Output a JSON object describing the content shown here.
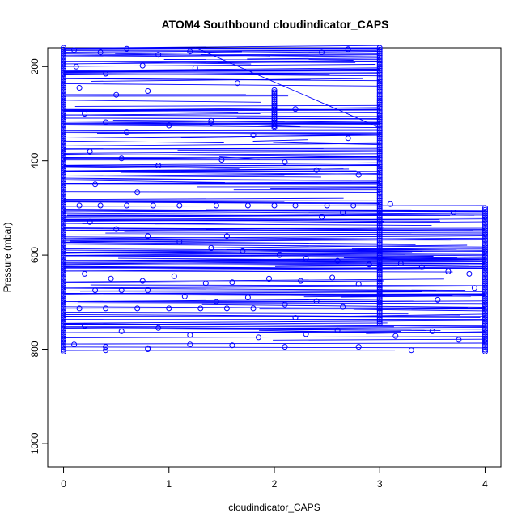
{
  "chart_data": {
    "type": "scatter",
    "title": "ATOM4 Southbound cloudindicator_CAPS",
    "xlabel": "cloudindicator_CAPS",
    "ylabel": "Pressure (mbar)",
    "xlim": [
      -0.15,
      4.15
    ],
    "ylim": [
      1050,
      160
    ],
    "y_inverted": true,
    "x_ticks": [
      0,
      1,
      2,
      3,
      4
    ],
    "x_tick_labels": [
      "0",
      "1",
      "2",
      "3",
      "4"
    ],
    "y_ticks": [
      200,
      400,
      600,
      800,
      1000
    ],
    "y_tick_labels": [
      "200",
      "400",
      "600",
      "800",
      "1000"
    ],
    "series_color": "#0000ff",
    "marker": "open-circle",
    "legend": "none",
    "grid": false,
    "series": [
      {
        "name": "column at cloudindicator 0",
        "x_const": 0,
        "pressure_range": [
          160,
          805
        ],
        "description": "dense observations"
      },
      {
        "name": "column at cloudindicator 3",
        "x_const": 3,
        "pressure_range": [
          160,
          745
        ],
        "description": "dense observations"
      },
      {
        "name": "column at cloudindicator 4",
        "x_const": 4,
        "pressure_range": [
          500,
          805
        ],
        "description": "dense observations"
      },
      {
        "name": "column at cloudindicator 2",
        "x_const": 2,
        "pressure_range": [
          250,
          330
        ],
        "description": "cluster of observations"
      }
    ],
    "scattered_points": [
      {
        "x": 0.1,
        "y": 165
      },
      {
        "x": 0.35,
        "y": 170
      },
      {
        "x": 0.6,
        "y": 162
      },
      {
        "x": 0.9,
        "y": 175
      },
      {
        "x": 1.2,
        "y": 168
      },
      {
        "x": 0.12,
        "y": 200
      },
      {
        "x": 0.4,
        "y": 215
      },
      {
        "x": 0.75,
        "y": 198
      },
      {
        "x": 1.25,
        "y": 203
      },
      {
        "x": 1.65,
        "y": 235
      },
      {
        "x": 0.15,
        "y": 245
      },
      {
        "x": 0.5,
        "y": 260
      },
      {
        "x": 0.8,
        "y": 252
      },
      {
        "x": 2.45,
        "y": 170
      },
      {
        "x": 2.7,
        "y": 163
      },
      {
        "x": 0.2,
        "y": 300
      },
      {
        "x": 0.4,
        "y": 318
      },
      {
        "x": 0.6,
        "y": 340
      },
      {
        "x": 1.0,
        "y": 325
      },
      {
        "x": 1.4,
        "y": 320
      },
      {
        "x": 1.8,
        "y": 345
      },
      {
        "x": 2.2,
        "y": 290
      },
      {
        "x": 2.7,
        "y": 352
      },
      {
        "x": 0.25,
        "y": 380
      },
      {
        "x": 0.55,
        "y": 395
      },
      {
        "x": 0.9,
        "y": 410
      },
      {
        "x": 1.5,
        "y": 398
      },
      {
        "x": 2.1,
        "y": 403
      },
      {
        "x": 2.4,
        "y": 420
      },
      {
        "x": 2.8,
        "y": 430
      },
      {
        "x": 0.3,
        "y": 450
      },
      {
        "x": 0.7,
        "y": 467
      },
      {
        "x": 0.15,
        "y": 495
      },
      {
        "x": 0.35,
        "y": 495
      },
      {
        "x": 0.6,
        "y": 495
      },
      {
        "x": 0.85,
        "y": 495
      },
      {
        "x": 1.1,
        "y": 495
      },
      {
        "x": 1.45,
        "y": 495
      },
      {
        "x": 1.75,
        "y": 495
      },
      {
        "x": 2.0,
        "y": 495
      },
      {
        "x": 2.2,
        "y": 495
      },
      {
        "x": 2.5,
        "y": 495
      },
      {
        "x": 2.75,
        "y": 495
      },
      {
        "x": 3.1,
        "y": 492
      },
      {
        "x": 3.7,
        "y": 510
      },
      {
        "x": 2.65,
        "y": 510
      },
      {
        "x": 0.25,
        "y": 530
      },
      {
        "x": 0.5,
        "y": 545
      },
      {
        "x": 0.8,
        "y": 560
      },
      {
        "x": 1.1,
        "y": 572
      },
      {
        "x": 1.4,
        "y": 585
      },
      {
        "x": 1.7,
        "y": 592
      },
      {
        "x": 2.05,
        "y": 600
      },
      {
        "x": 2.3,
        "y": 608
      },
      {
        "x": 2.6,
        "y": 612
      },
      {
        "x": 2.9,
        "y": 620
      },
      {
        "x": 3.2,
        "y": 618
      },
      {
        "x": 3.4,
        "y": 626
      },
      {
        "x": 3.65,
        "y": 635
      },
      {
        "x": 3.85,
        "y": 640
      },
      {
        "x": 0.2,
        "y": 640
      },
      {
        "x": 0.45,
        "y": 650
      },
      {
        "x": 0.75,
        "y": 655
      },
      {
        "x": 1.05,
        "y": 645
      },
      {
        "x": 1.35,
        "y": 660
      },
      {
        "x": 1.6,
        "y": 658
      },
      {
        "x": 1.95,
        "y": 650
      },
      {
        "x": 2.25,
        "y": 655
      },
      {
        "x": 2.55,
        "y": 648
      },
      {
        "x": 2.8,
        "y": 662
      },
      {
        "x": 0.3,
        "y": 675
      },
      {
        "x": 0.55,
        "y": 675
      },
      {
        "x": 0.8,
        "y": 675
      },
      {
        "x": 1.15,
        "y": 688
      },
      {
        "x": 1.45,
        "y": 700
      },
      {
        "x": 1.75,
        "y": 690
      },
      {
        "x": 2.1,
        "y": 705
      },
      {
        "x": 2.4,
        "y": 698
      },
      {
        "x": 2.65,
        "y": 710
      },
      {
        "x": 3.55,
        "y": 695
      },
      {
        "x": 3.9,
        "y": 670
      },
      {
        "x": 0.15,
        "y": 713
      },
      {
        "x": 0.4,
        "y": 713
      },
      {
        "x": 0.7,
        "y": 713
      },
      {
        "x": 1.0,
        "y": 713
      },
      {
        "x": 1.3,
        "y": 713
      },
      {
        "x": 1.55,
        "y": 713
      },
      {
        "x": 1.8,
        "y": 713
      },
      {
        "x": 2.2,
        "y": 733
      },
      {
        "x": 0.2,
        "y": 750
      },
      {
        "x": 0.55,
        "y": 762
      },
      {
        "x": 0.9,
        "y": 755
      },
      {
        "x": 1.2,
        "y": 770
      },
      {
        "x": 1.85,
        "y": 775
      },
      {
        "x": 2.3,
        "y": 768
      },
      {
        "x": 2.6,
        "y": 760
      },
      {
        "x": 3.15,
        "y": 772
      },
      {
        "x": 3.5,
        "y": 762
      },
      {
        "x": 3.75,
        "y": 780
      },
      {
        "x": 0.1,
        "y": 790
      },
      {
        "x": 0.4,
        "y": 795
      },
      {
        "x": 0.8,
        "y": 798
      },
      {
        "x": 1.2,
        "y": 790
      },
      {
        "x": 1.6,
        "y": 792
      },
      {
        "x": 2.1,
        "y": 795
      },
      {
        "x": 2.8,
        "y": 795
      },
      {
        "x": 3.3,
        "y": 802
      },
      {
        "x": 0.4,
        "y": 802
      },
      {
        "x": 0.8,
        "y": 800
      },
      {
        "x": 1.4,
        "y": 315
      },
      {
        "x": 1.55,
        "y": 560
      },
      {
        "x": 2.45,
        "y": 520
      }
    ],
    "profile_lines_note": "many near-horizontal profile segments connecting observations across x between pressure 160 and 805 mbar",
    "diagonal_line": {
      "from": {
        "x": 1.25,
        "y": 160
      },
      "to": {
        "x": 3.0,
        "y": 330
      }
    }
  }
}
